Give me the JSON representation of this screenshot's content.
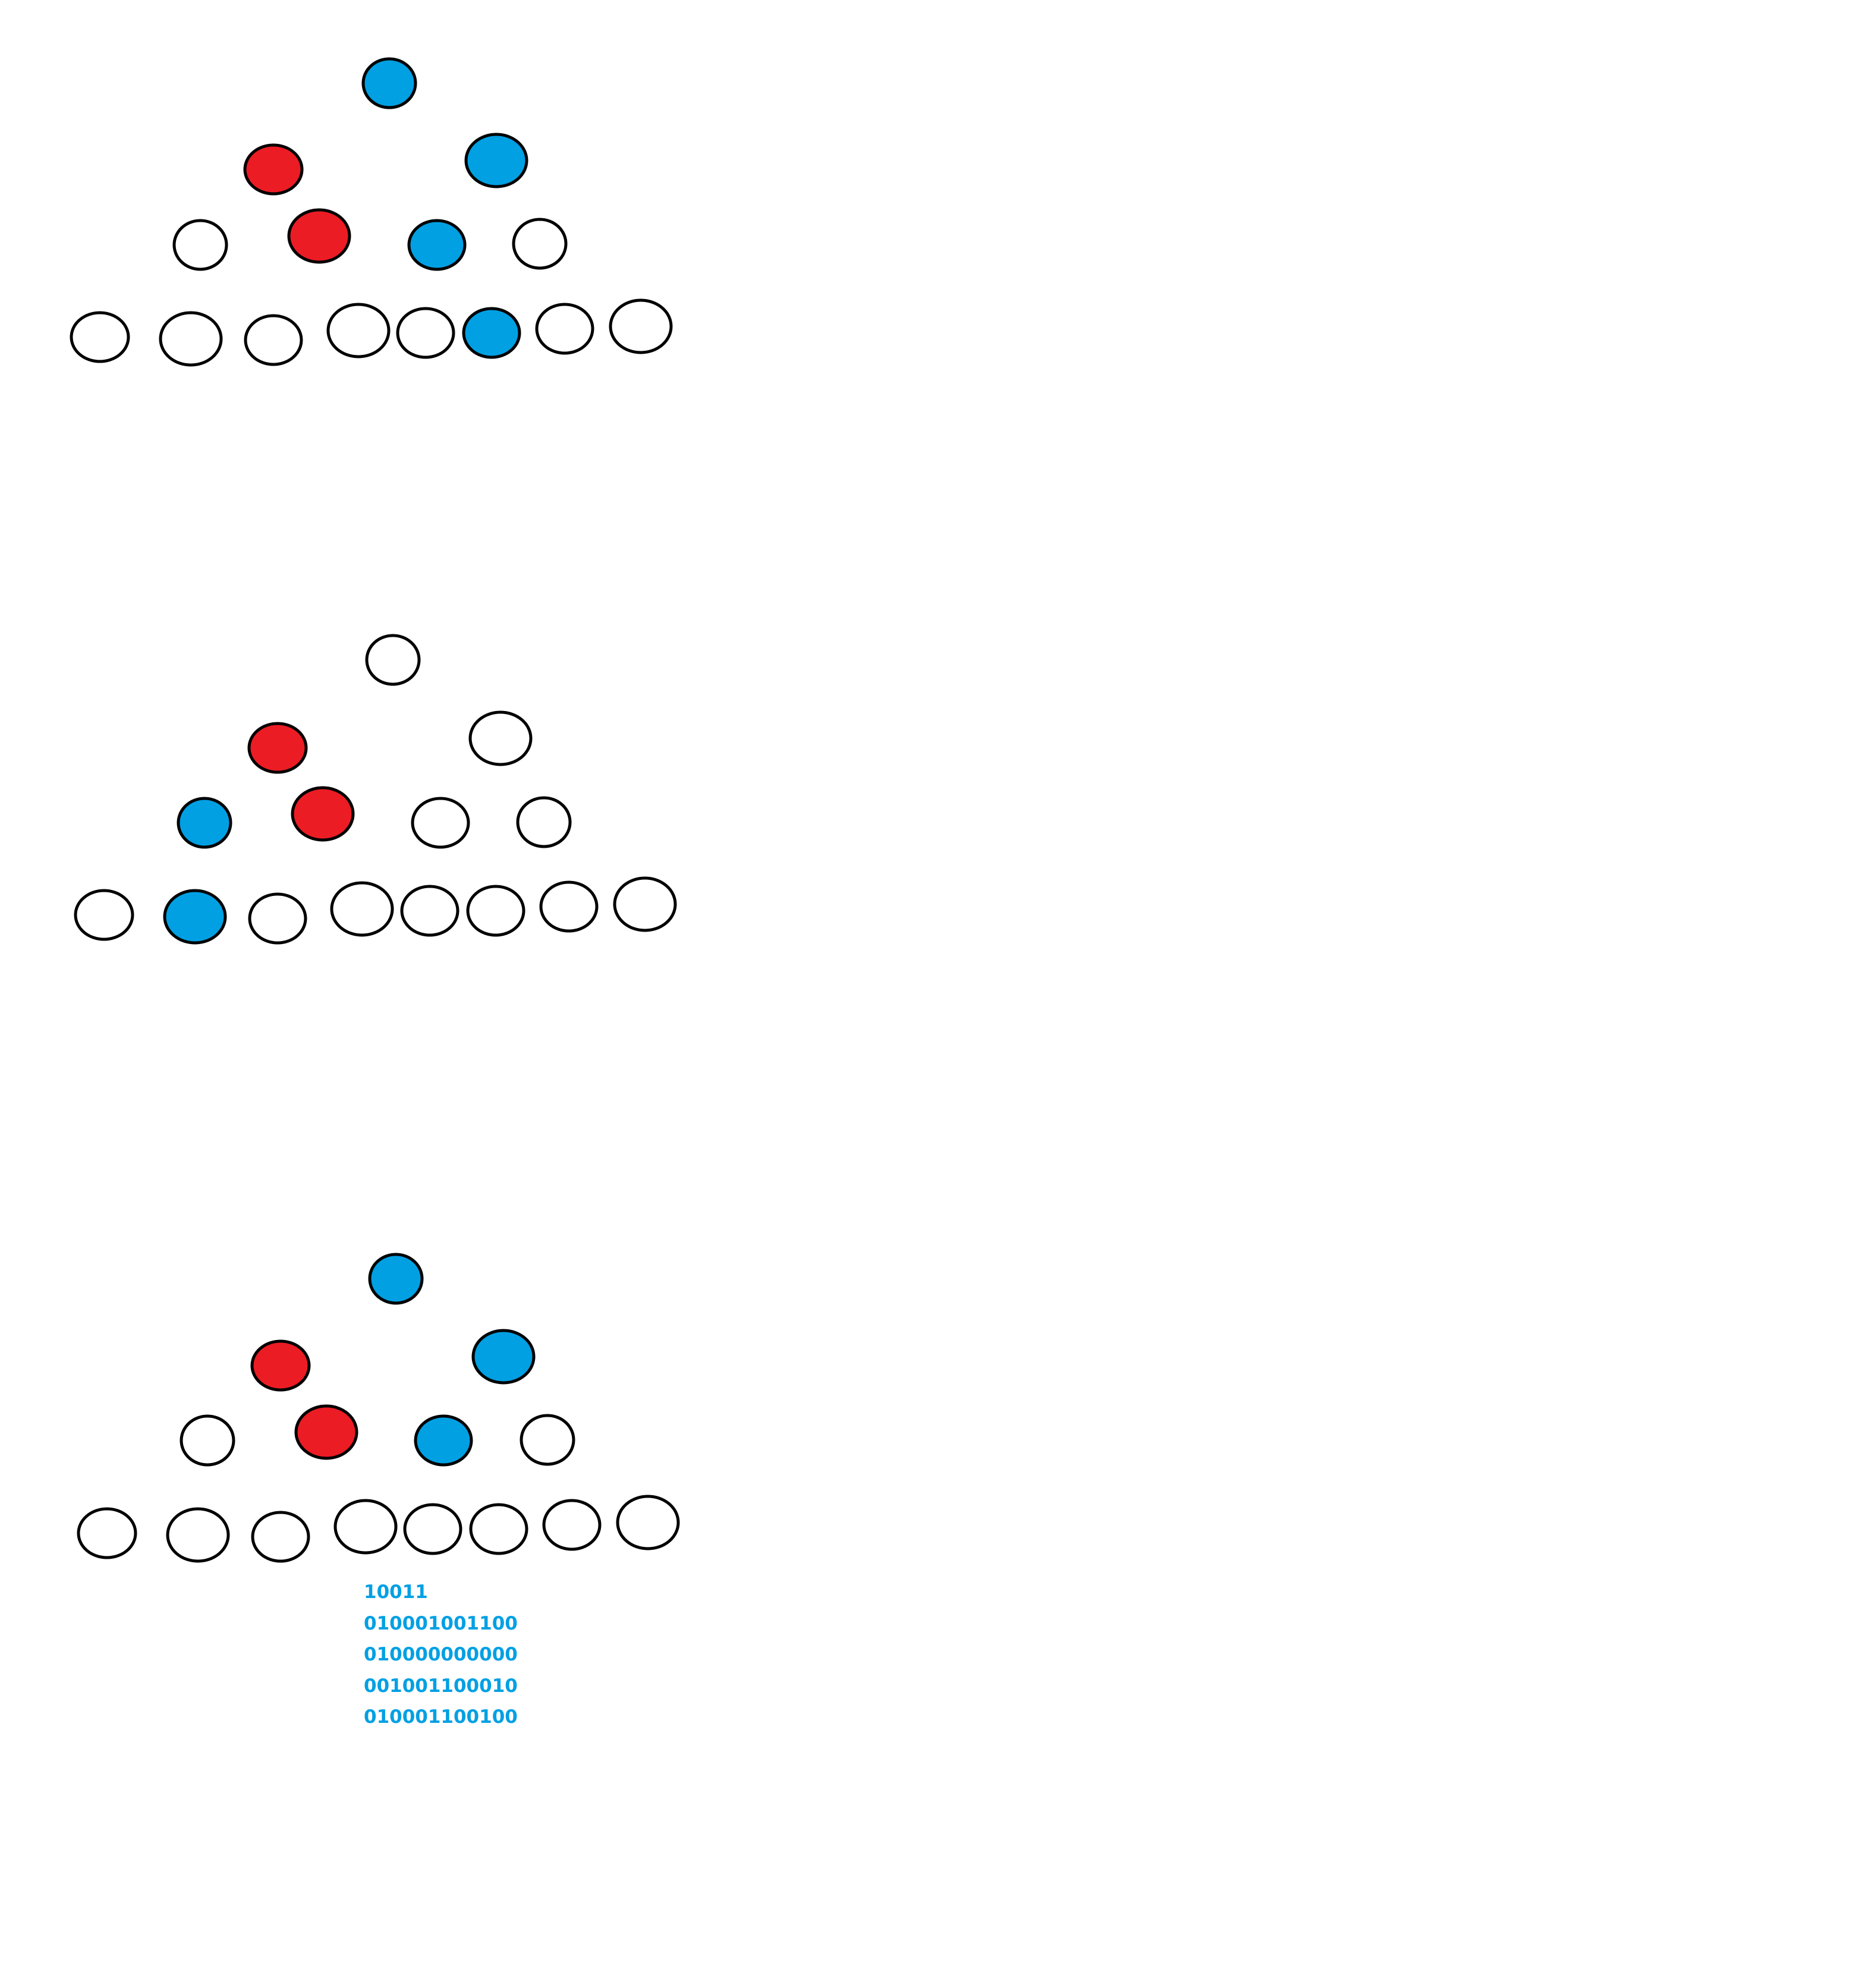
{
  "colors": {
    "blue": "#00a0e3",
    "red": "#ec1c24",
    "empty": "#ffffff",
    "outline": "#000000",
    "text": "#00a0e3"
  },
  "trees": [
    {
      "name": "tree-1",
      "levels": [
        [
          "blue"
        ],
        [
          "red",
          "blue"
        ],
        [
          "empty",
          "red",
          "blue",
          "empty"
        ],
        [
          "empty",
          "empty",
          "empty",
          "empty",
          "empty",
          "blue",
          "empty",
          "empty"
        ]
      ]
    },
    {
      "name": "tree-2",
      "levels": [
        [
          "empty"
        ],
        [
          "red",
          "empty"
        ],
        [
          "blue",
          "red",
          "empty",
          "empty"
        ],
        [
          "empty",
          "blue",
          "empty",
          "empty",
          "empty",
          "empty",
          "empty",
          "empty"
        ]
      ]
    },
    {
      "name": "tree-3",
      "levels": [
        [
          "blue"
        ],
        [
          "red",
          "blue"
        ],
        [
          "empty",
          "red",
          "blue",
          "empty"
        ],
        [
          "empty",
          "empty",
          "empty",
          "empty",
          "empty",
          "empty",
          "empty",
          "empty"
        ]
      ]
    }
  ],
  "binary_lines": [
    "10011",
    "010001001100",
    "010000000000",
    "001001100010",
    "010001100100"
  ]
}
